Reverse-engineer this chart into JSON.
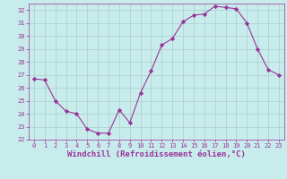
{
  "x": [
    0,
    1,
    2,
    3,
    4,
    5,
    6,
    7,
    8,
    9,
    10,
    11,
    12,
    13,
    14,
    15,
    16,
    17,
    18,
    19,
    20,
    21,
    22,
    23
  ],
  "y": [
    26.7,
    26.6,
    25.0,
    24.2,
    24.0,
    22.8,
    22.5,
    22.5,
    24.3,
    23.3,
    25.6,
    27.3,
    29.3,
    29.8,
    31.1,
    31.6,
    31.7,
    32.3,
    32.2,
    32.1,
    31.0,
    29.0,
    27.4,
    27.0
  ],
  "line_color": "#993399",
  "marker": "D",
  "marker_size": 2.2,
  "bg_color": "#c8ecec",
  "grid_color": "#aacccc",
  "xlabel": "Windchill (Refroidissement éolien,°C)",
  "ylim": [
    22,
    32.5
  ],
  "xlim": [
    -0.5,
    23.5
  ],
  "yticks": [
    22,
    23,
    24,
    25,
    26,
    27,
    28,
    29,
    30,
    31,
    32
  ],
  "xticks": [
    0,
    1,
    2,
    3,
    4,
    5,
    6,
    7,
    8,
    9,
    10,
    11,
    12,
    13,
    14,
    15,
    16,
    17,
    18,
    19,
    20,
    21,
    22,
    23
  ],
  "tick_color": "#993399",
  "label_color": "#993399",
  "tick_fontsize": 5.0,
  "xlabel_fontsize": 6.5,
  "linewidth": 0.8
}
